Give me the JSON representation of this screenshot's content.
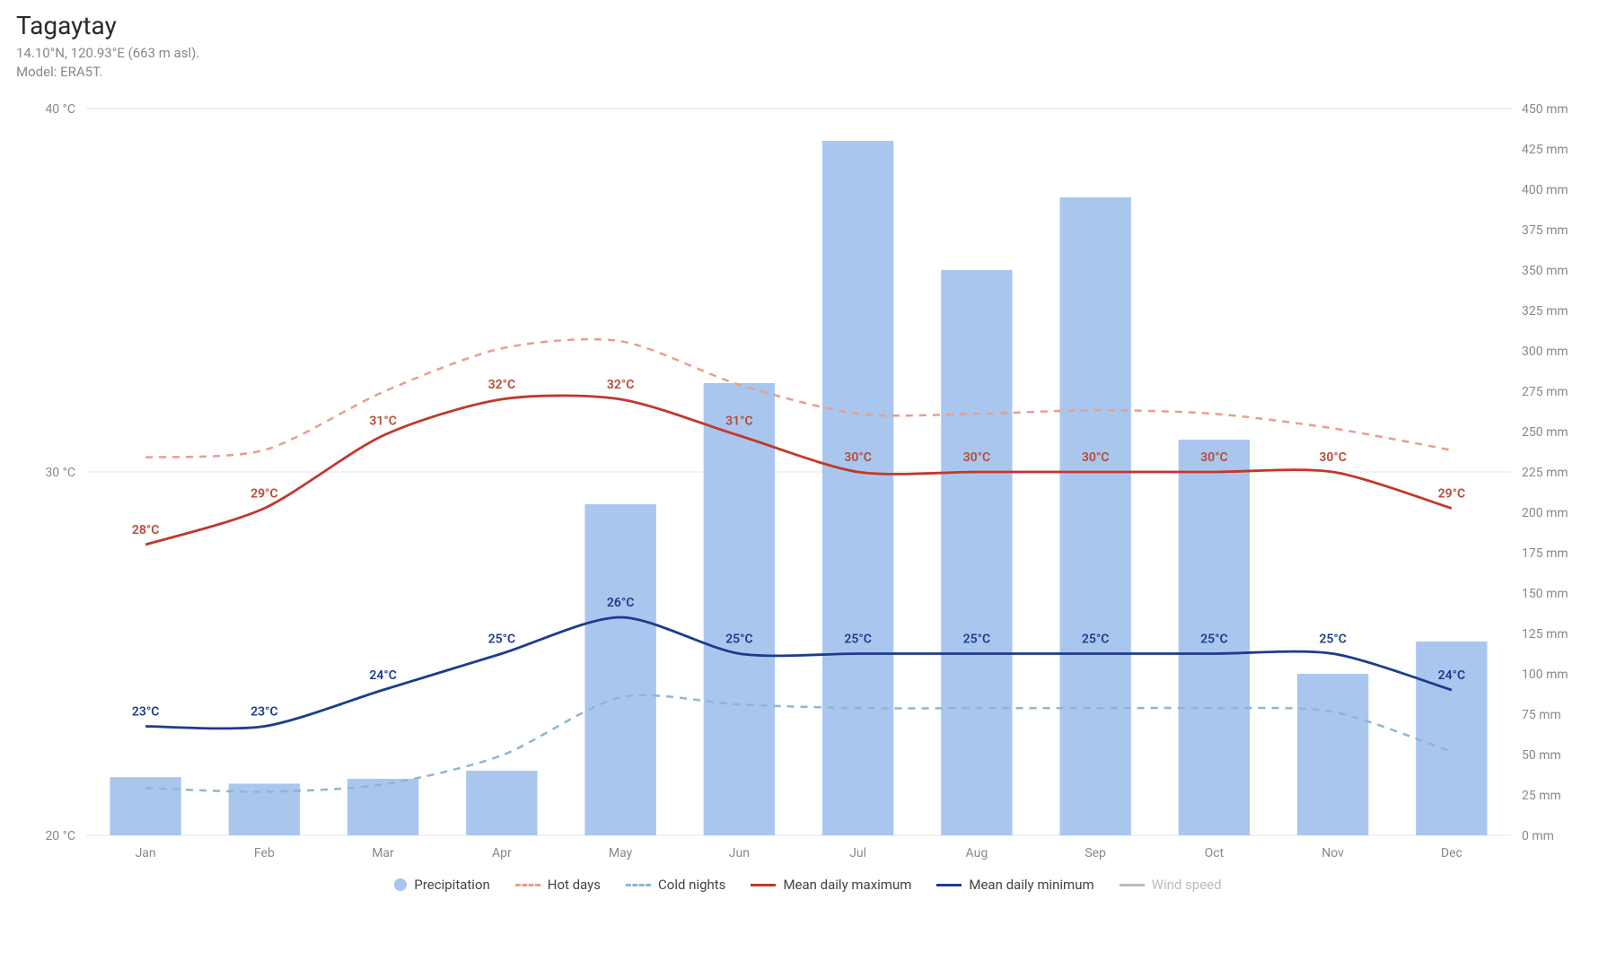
{
  "header": {
    "title": "Tagaytay",
    "sub1": "14.10°N, 120.93°E (663 m asl).",
    "sub2": "Model: ERA5T."
  },
  "chart": {
    "type": "bar+line",
    "months": [
      "Jan",
      "Feb",
      "Mar",
      "Apr",
      "May",
      "Jun",
      "Jul",
      "Aug",
      "Sep",
      "Oct",
      "Nov",
      "Dec"
    ],
    "background_color": "#ffffff",
    "grid_color": "#e6e6e6",
    "axis_text_color": "#888888",
    "axis_fontsize": 14,
    "left_axis": {
      "unit": "°C",
      "min": 20,
      "max": 40,
      "ticks": [
        20,
        30,
        40
      ],
      "tick_labels": [
        "20 °C",
        "30 °C",
        "40 °C"
      ]
    },
    "right_axis": {
      "unit": "mm",
      "min": 0,
      "max": 450,
      "ticks": [
        0,
        25,
        50,
        75,
        100,
        125,
        150,
        175,
        200,
        225,
        250,
        275,
        300,
        325,
        350,
        375,
        400,
        425,
        450
      ],
      "tick_labels": [
        "0 mm",
        "25 mm",
        "50 mm",
        "75 mm",
        "100 mm",
        "125 mm",
        "150 mm",
        "175 mm",
        "200 mm",
        "225 mm",
        "250 mm",
        "275 mm",
        "300 mm",
        "325 mm",
        "350 mm",
        "375 mm",
        "400 mm",
        "425 mm",
        "450 mm"
      ]
    },
    "precipitation": {
      "values": [
        36,
        32,
        35,
        40,
        205,
        280,
        430,
        350,
        395,
        245,
        100,
        120
      ],
      "color": "#a9c6ef",
      "bar_width_ratio": 0.6
    },
    "hot_days": {
      "values": [
        30.4,
        30.6,
        32.2,
        33.4,
        33.6,
        32.4,
        31.6,
        31.6,
        31.7,
        31.6,
        31.2,
        30.6
      ],
      "color": "#e99e8e",
      "dash": "8,7",
      "width": 2.5
    },
    "cold_nights": {
      "values": [
        21.3,
        21.2,
        21.4,
        22.2,
        23.8,
        23.6,
        23.5,
        23.5,
        23.5,
        23.5,
        23.4,
        22.3
      ],
      "color": "#8fb7cf",
      "dash": "8,7",
      "width": 2.5
    },
    "mean_max": {
      "values": [
        28,
        29,
        31,
        32,
        32,
        31,
        30,
        30,
        30,
        30,
        30,
        29
      ],
      "labels": [
        "28°C",
        "29°C",
        "31°C",
        "32°C",
        "32°C",
        "31°C",
        "30°C",
        "30°C",
        "30°C",
        "30°C",
        "30°C",
        "29°C"
      ],
      "color": "#c0392b",
      "label_color": "#b84a33",
      "width": 2.8
    },
    "mean_min": {
      "values": [
        23,
        23,
        24,
        25,
        26,
        25,
        25,
        25,
        25,
        25,
        25,
        24
      ],
      "labels": [
        "23°C",
        "23°C",
        "24°C",
        "25°C",
        "26°C",
        "25°C",
        "25°C",
        "25°C",
        "25°C",
        "25°C",
        "25°C",
        "24°C"
      ],
      "color": "#1d3c8c",
      "label_color": "#1d3c8c",
      "width": 2.8
    }
  },
  "legend": {
    "precipitation": "Precipitation",
    "hot_days": "Hot days",
    "cold_nights": "Cold nights",
    "mean_max": "Mean daily maximum",
    "mean_min": "Mean daily minimum",
    "wind": "Wind speed",
    "wind_color": "#bbbbbb"
  }
}
